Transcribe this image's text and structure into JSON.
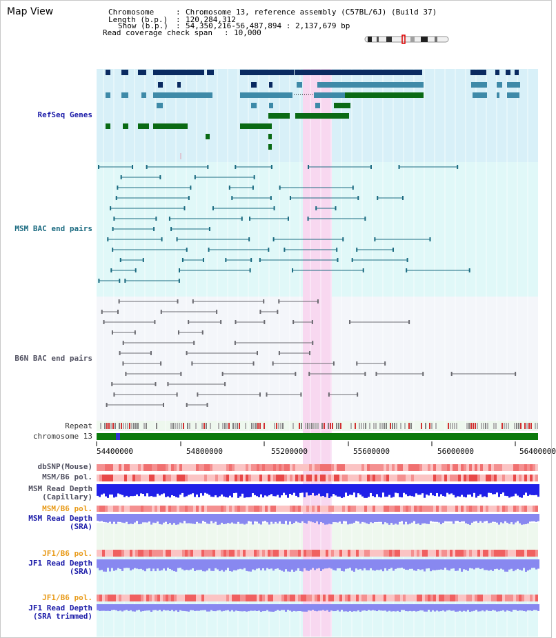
{
  "window": {
    "title": "Map View"
  },
  "header": {
    "chromosome_key": "Chromosome",
    "chromosome_val": "Chromosome 13, reference assembly (C57BL/6J) (Build 37)",
    "length_key": "Length (b.p.)",
    "length_val": "120,284,312",
    "show_key": "Show (b.p.)",
    "show_val": "54,350,216-56,487,894 : 2,137,679 bp",
    "coverage_key": "Read coverage check span",
    "coverage_val": "10,000",
    "separator": ":"
  },
  "tracks": {
    "refseq": "RefSeq Genes",
    "msm_bac": "MSM BAC end pairs",
    "b6n_bac": "B6N BAC end pairs",
    "repeat": "Repeat",
    "chromosome": "chromosome 13",
    "dbsnp": "dbSNP(Mouse)",
    "msm_pol1": "MSM/B6 pol.",
    "msm_depth_cap": "MSM Read Depth\n(Capillary)",
    "msm_pol2": "MSM/B6 pol.",
    "msm_depth_sra": "MSM Read Depth\n(SRA)",
    "jf1_pol1": "JF1/B6 pol.",
    "jf1_depth_sra": "JF1 Read Depth\n(SRA)",
    "jf1_pol2": "JF1/B6 pol.",
    "jf1_depth_trim": "JF1 Read Depth\n(SRA trimmed)"
  },
  "axis": {
    "ticks": [
      "54400000",
      "54800000",
      "55200000",
      "55600000",
      "56000000",
      "56400000"
    ]
  },
  "colors": {
    "refseq_bg": "#d8f0f8",
    "msm_bg": "#e0f8f8",
    "b6n_bg": "#f4f6fa",
    "highlight": "#f8d8f0",
    "chrom_green": "#0b7a0b",
    "depth_blue": "#2020e8",
    "depth_lightblue": "#8888f0",
    "pol_red": "#f06060",
    "gene_navy": "#0a2a60",
    "gene_steel": "#3e8aa8",
    "gene_green": "#0a6a14"
  }
}
